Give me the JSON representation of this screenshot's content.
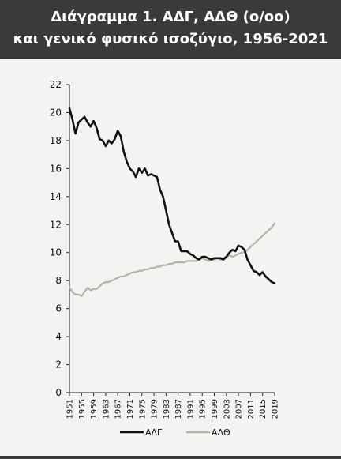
{
  "chart_data": {
    "type": "line",
    "title_lines": [
      "Διάγραμμα 1.  ΑΔΓ, ΑΔΘ (ο/οο)",
      "και γενικό φυσικό ισοζύγιο, 1956-2021"
    ],
    "xlabel": "",
    "ylabel": "",
    "ylim": [
      0,
      22
    ],
    "xlim": [
      1951,
      2019
    ],
    "yticks": [
      0,
      2,
      4,
      6,
      8,
      10,
      12,
      14,
      16,
      18,
      20,
      22
    ],
    "xticks": [
      1951,
      1955,
      1959,
      1963,
      1967,
      1971,
      1975,
      1979,
      1983,
      1987,
      1991,
      1995,
      1999,
      2003,
      2007,
      2011,
      2015,
      2019
    ],
    "grid": false,
    "legend_position": "bottom",
    "x": [
      1951,
      1952,
      1953,
      1954,
      1955,
      1956,
      1957,
      1958,
      1959,
      1960,
      1961,
      1962,
      1963,
      1964,
      1965,
      1966,
      1967,
      1968,
      1969,
      1970,
      1971,
      1972,
      1973,
      1974,
      1975,
      1976,
      1977,
      1978,
      1979,
      1980,
      1981,
      1982,
      1983,
      1984,
      1985,
      1986,
      1987,
      1988,
      1989,
      1990,
      1991,
      1992,
      1993,
      1994,
      1995,
      1996,
      1997,
      1998,
      1999,
      2000,
      2001,
      2002,
      2003,
      2004,
      2005,
      2006,
      2007,
      2008,
      2009,
      2010,
      2011,
      2012,
      2013,
      2014,
      2015,
      2016,
      2017,
      2018,
      2019
    ],
    "series": [
      {
        "name": "ΑΔΓ",
        "color": "#111111",
        "values": [
          20.3,
          19.5,
          18.5,
          19.3,
          19.5,
          19.7,
          19.3,
          19.0,
          19.4,
          18.9,
          18.1,
          18.0,
          17.6,
          18.0,
          17.8,
          18.1,
          18.7,
          18.3,
          17.2,
          16.5,
          16.0,
          15.8,
          15.4,
          16.0,
          15.7,
          16.0,
          15.5,
          15.6,
          15.5,
          15.4,
          14.5,
          14.0,
          13.0,
          12.0,
          11.4,
          10.8,
          10.8,
          10.1,
          10.1,
          10.1,
          9.9,
          9.8,
          9.6,
          9.5,
          9.7,
          9.7,
          9.6,
          9.5,
          9.6,
          9.6,
          9.6,
          9.5,
          9.7,
          10.0,
          10.2,
          10.1,
          10.5,
          10.4,
          10.2,
          9.5,
          9.1,
          8.7,
          8.6,
          8.4,
          8.6,
          8.3,
          8.1,
          7.9,
          7.8
        ]
      },
      {
        "name": "ΑΔΘ",
        "color": "#b8b2a8",
        "values": [
          7.5,
          7.2,
          7.0,
          7.0,
          6.9,
          7.2,
          7.5,
          7.3,
          7.4,
          7.4,
          7.6,
          7.8,
          7.9,
          7.9,
          8.0,
          8.1,
          8.2,
          8.3,
          8.3,
          8.4,
          8.5,
          8.6,
          8.6,
          8.7,
          8.7,
          8.8,
          8.8,
          8.9,
          8.9,
          9.0,
          9.0,
          9.1,
          9.1,
          9.2,
          9.2,
          9.3,
          9.3,
          9.3,
          9.3,
          9.4,
          9.4,
          9.4,
          9.4,
          9.5,
          9.6,
          9.5,
          9.4,
          9.5,
          9.5,
          9.6,
          9.5,
          9.6,
          9.7,
          9.8,
          9.7,
          9.8,
          9.9,
          10.0,
          10.0,
          10.2,
          10.4,
          10.6,
          10.8,
          11.0,
          11.2,
          11.4,
          11.6,
          11.8,
          12.1
        ]
      }
    ]
  }
}
